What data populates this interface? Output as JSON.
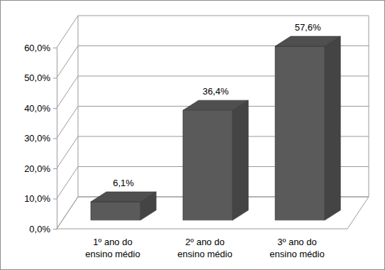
{
  "chart_data": {
    "type": "bar",
    "categories": [
      "1º ano do ensino médio",
      "2º ano do ensino médio",
      "3º ano do ensino médio"
    ],
    "values": [
      6.1,
      36.4,
      57.6
    ],
    "value_labels": [
      "6,1%",
      "36,4%",
      "57,6%"
    ],
    "color": "#5a5a5a",
    "ylim": [
      0,
      60
    ],
    "yticks": [
      {
        "value": 0,
        "label": "0,0%"
      },
      {
        "value": 10,
        "label": "10,0%"
      },
      {
        "value": 20,
        "label": "20,0%"
      },
      {
        "value": 30,
        "label": "30,0%"
      },
      {
        "value": 40,
        "label": "40,0%"
      },
      {
        "value": 50,
        "label": "50,0%"
      },
      {
        "value": 60,
        "label": "60,0%"
      }
    ],
    "grid": true,
    "data_labels": true
  }
}
